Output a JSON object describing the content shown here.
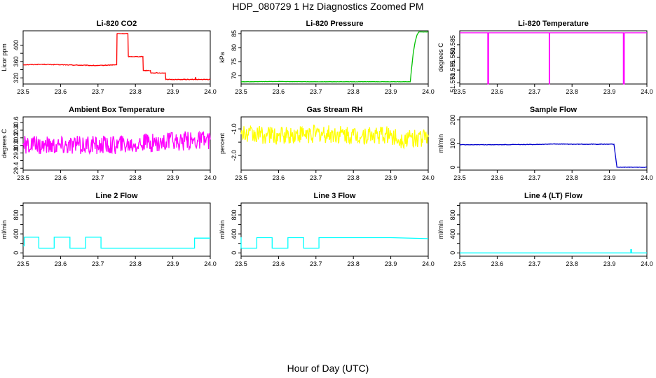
{
  "title": "HDP_080729  1 Hz Diagnostics Zoomed PM",
  "x_title": "Hour of Day (UTC)",
  "chart_data": [
    {
      "type": "line",
      "title": "Li-820 CO2",
      "ylabel": "Licor ppm",
      "xlim": [
        23.5,
        24.0
      ],
      "ylim": [
        305,
        435
      ],
      "x_ticks": [
        "23.5",
        "23.6",
        "23.7",
        "23.8",
        "23.9",
        "24.0"
      ],
      "y_ticks": [
        320,
        340,
        360,
        380,
        400
      ],
      "y_tick_labels": [
        "320",
        "",
        "360",
        "",
        "400"
      ],
      "color": "#ff0000",
      "noise": 0.8,
      "x": [
        23.5,
        23.55,
        23.6,
        23.65,
        23.7,
        23.75,
        23.751,
        23.78,
        23.781,
        23.82,
        23.821,
        23.84,
        23.841,
        23.88,
        23.881,
        23.96,
        23.961,
        23.962,
        23.965,
        24.0
      ],
      "y": [
        352,
        353,
        352,
        351,
        350,
        352,
        428,
        428,
        372,
        372,
        338,
        338,
        332,
        332,
        316,
        316,
        322,
        316,
        316,
        316
      ]
    },
    {
      "type": "line",
      "title": "Li-820 Pressure",
      "ylabel": "kPa",
      "xlim": [
        23.5,
        24.0
      ],
      "ylim": [
        67,
        86
      ],
      "x_ticks": [
        "23.5",
        "23.6",
        "23.7",
        "23.8",
        "23.9",
        "24.0"
      ],
      "y_ticks": [
        70,
        75,
        80,
        85
      ],
      "y_tick_labels": [
        "70",
        "75",
        "80",
        "85"
      ],
      "color": "#00c000",
      "noise": 0.05,
      "x": [
        23.5,
        23.6,
        23.7,
        23.8,
        23.9,
        23.952,
        23.955,
        23.96,
        23.965,
        23.97,
        23.975,
        24.0
      ],
      "y": [
        67.8,
        67.9,
        67.8,
        67.8,
        67.8,
        67.8,
        72,
        78,
        82,
        84.5,
        85.6,
        85.6
      ]
    },
    {
      "type": "line",
      "title": "Li-820 Temperature",
      "ylabel": "degrees C",
      "xlim": [
        23.5,
        24.0
      ],
      "ylim": [
        51.5695,
        51.5905
      ],
      "x_ticks": [
        "23.5",
        "23.6",
        "23.7",
        "23.8",
        "23.9",
        "24.0"
      ],
      "y_ticks": [
        51.57,
        51.575,
        51.58,
        51.585
      ],
      "y_tick_labels": [
        "51.570",
        "51.575",
        "51.580",
        "51.585"
      ],
      "color": "#ff00ff",
      "noise": 0,
      "x": [
        23.5,
        23.575,
        23.575,
        23.577,
        23.577,
        23.739,
        23.739,
        23.74,
        23.74,
        23.937,
        23.937,
        23.94,
        23.94,
        24.0
      ],
      "y": [
        51.5897,
        51.5897,
        51.5695,
        51.5695,
        51.5897,
        51.5897,
        51.5695,
        51.5695,
        51.5897,
        51.5897,
        51.5695,
        51.5695,
        51.5897,
        51.5897
      ]
    },
    {
      "type": "line",
      "title": "Ambient Box Temperature",
      "ylabel": "degrees C",
      "xlim": [
        23.5,
        24.0
      ],
      "ylim": [
        29.35,
        30.75
      ],
      "x_ticks": [
        "23.5",
        "23.6",
        "23.7",
        "23.8",
        "23.9",
        "24.0"
      ],
      "y_ticks": [
        29.4,
        29.6,
        29.8,
        30.0,
        30.2,
        30.4,
        30.6
      ],
      "y_tick_labels": [
        "29.4",
        "",
        "29.8",
        "30.0",
        "30.2",
        "30.4",
        "30.6"
      ],
      "color": "#ff00ff",
      "noise": 0.25,
      "x": [
        23.5,
        23.6,
        23.7,
        23.8,
        23.9,
        24.0
      ],
      "y": [
        30.0,
        30.0,
        30.0,
        30.05,
        30.1,
        30.15
      ]
    },
    {
      "type": "line",
      "title": "Gas Stream RH",
      "ylabel": "percent",
      "xlim": [
        23.5,
        24.0
      ],
      "ylim": [
        -2.55,
        -0.55
      ],
      "x_ticks": [
        "23.5",
        "23.6",
        "23.7",
        "23.8",
        "23.9",
        "24.0"
      ],
      "y_ticks": [
        -2.0,
        -1.5,
        -1.0
      ],
      "y_tick_labels": [
        "-2.0",
        "",
        "-1.0"
      ],
      "color": "#ffff00",
      "noise": 0.35,
      "x": [
        23.5,
        23.6,
        23.7,
        23.8,
        23.9,
        23.92,
        24.0
      ],
      "y": [
        -1.2,
        -1.25,
        -1.2,
        -1.25,
        -1.25,
        -1.4,
        -1.3
      ]
    },
    {
      "type": "line",
      "title": "Sample Flow",
      "ylabel": "ml/min",
      "xlim": [
        23.5,
        24.0
      ],
      "ylim": [
        -12,
        212
      ],
      "x_ticks": [
        "23.5",
        "23.6",
        "23.7",
        "23.8",
        "23.9",
        "24.0"
      ],
      "y_ticks": [
        0,
        100,
        200
      ],
      "y_tick_labels": [
        "0",
        "100",
        "200"
      ],
      "color": "#0000cc",
      "noise": 1,
      "x": [
        23.5,
        23.6,
        23.7,
        23.75,
        23.8,
        23.9,
        23.912,
        23.92,
        24.0
      ],
      "y": [
        95,
        95,
        96,
        98,
        97,
        97,
        97,
        0,
        0
      ]
    },
    {
      "type": "line",
      "title": "Line 2 Flow",
      "ylabel": "ml/min",
      "xlim": [
        23.5,
        24.0
      ],
      "ylim": [
        -70,
        1050
      ],
      "x_ticks": [
        "23.5",
        "23.6",
        "23.7",
        "23.8",
        "23.9",
        "24.0"
      ],
      "y_ticks": [
        0,
        200,
        400,
        600,
        800,
        1000
      ],
      "y_tick_labels": [
        "0",
        "",
        "400",
        "",
        "800",
        ""
      ],
      "color": "#00ffff",
      "noise": 0,
      "x": [
        23.5,
        23.503,
        23.503,
        23.542,
        23.542,
        23.583,
        23.583,
        23.625,
        23.625,
        23.667,
        23.667,
        23.708,
        23.708,
        23.958,
        23.958,
        24.0
      ],
      "y": [
        150,
        150,
        330,
        330,
        100,
        100,
        330,
        330,
        100,
        100,
        330,
        330,
        100,
        100,
        310,
        310
      ]
    },
    {
      "type": "line",
      "title": "Line 3 Flow",
      "ylabel": "ml/min",
      "xlim": [
        23.5,
        24.0
      ],
      "ylim": [
        -70,
        1050
      ],
      "x_ticks": [
        "23.5",
        "23.6",
        "23.7",
        "23.8",
        "23.9",
        "24.0"
      ],
      "y_ticks": [
        0,
        200,
        400,
        600,
        800,
        1000
      ],
      "y_tick_labels": [
        "0",
        "",
        "400",
        "",
        "800",
        ""
      ],
      "color": "#00ffff",
      "noise": 0,
      "x": [
        23.5,
        23.5,
        23.503,
        23.503,
        23.542,
        23.542,
        23.583,
        23.583,
        23.625,
        23.625,
        23.667,
        23.667,
        23.708,
        23.708,
        23.9,
        24.0
      ],
      "y": [
        330,
        100,
        100,
        100,
        100,
        320,
        320,
        100,
        100,
        320,
        320,
        100,
        100,
        320,
        320,
        300
      ]
    },
    {
      "type": "line",
      "title": "Line 4 (LT) Flow",
      "ylabel": "ml/min",
      "xlim": [
        23.5,
        24.0
      ],
      "ylim": [
        -70,
        1050
      ],
      "x_ticks": [
        "23.5",
        "23.6",
        "23.7",
        "23.8",
        "23.9",
        "24.0"
      ],
      "y_ticks": [
        0,
        200,
        400,
        600,
        800,
        1000
      ],
      "y_tick_labels": [
        "0",
        "",
        "400",
        "",
        "800",
        ""
      ],
      "color": "#00ffff",
      "noise": 0,
      "x": [
        23.5,
        23.6,
        23.7,
        23.8,
        23.9,
        23.957,
        23.957,
        23.959,
        23.959,
        24.0
      ],
      "y": [
        0,
        0,
        0,
        0,
        0,
        0,
        70,
        70,
        0,
        0
      ]
    }
  ]
}
